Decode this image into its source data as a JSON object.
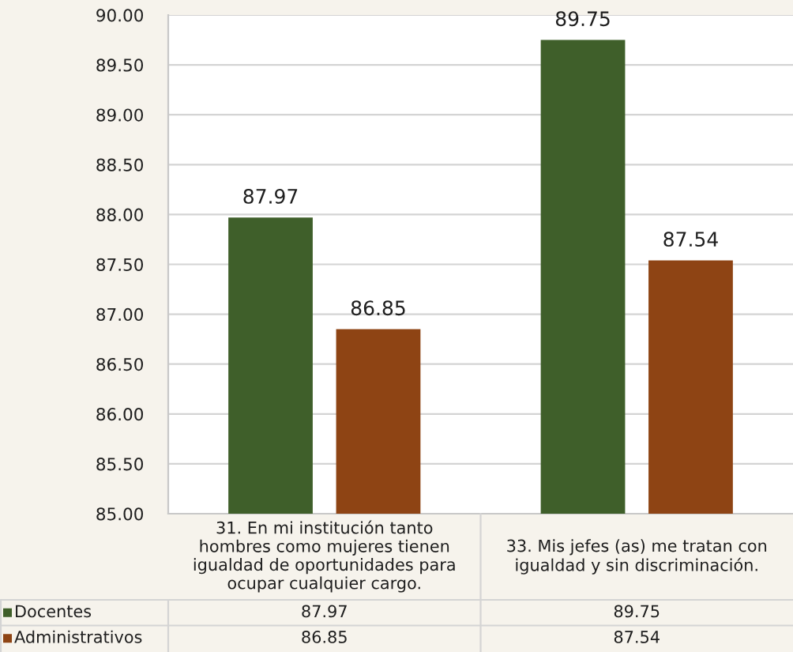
{
  "chart_data": {
    "type": "bar",
    "categories": [
      "31. En mi institución tanto hombres como mujeres tienen igualdad de oportunidades para ocupar cualquier cargo.",
      "33. Mis jefes (as) me tratan con igualdad y sin discriminación."
    ],
    "series": [
      {
        "name": "Docentes",
        "color": "#3f5f2a",
        "values": [
          87.97,
          89.75
        ]
      },
      {
        "name": "Administrativos",
        "color": "#8e4414",
        "values": [
          86.85,
          87.54
        ]
      }
    ],
    "ylim": [
      85,
      90
    ],
    "yticks": [
      {
        "value": 85,
        "label": "85.00"
      },
      {
        "value": 85.5,
        "label": "85.50"
      },
      {
        "value": 86,
        "label": "86.00"
      },
      {
        "value": 86.5,
        "label": "86.50"
      },
      {
        "value": 87,
        "label": "87.00"
      },
      {
        "value": 87.5,
        "label": "87.50"
      },
      {
        "value": 88,
        "label": "88.00"
      },
      {
        "value": 88.5,
        "label": "88.50"
      },
      {
        "value": 89,
        "label": "89.00"
      },
      {
        "value": 89.5,
        "label": "89.50"
      },
      {
        "value": 90,
        "label": "90.00"
      }
    ],
    "grid": "y",
    "legend": "bottom",
    "data_labels": true,
    "annotations": [
      "87.97",
      "89.75",
      "86.85",
      "87.54"
    ]
  }
}
